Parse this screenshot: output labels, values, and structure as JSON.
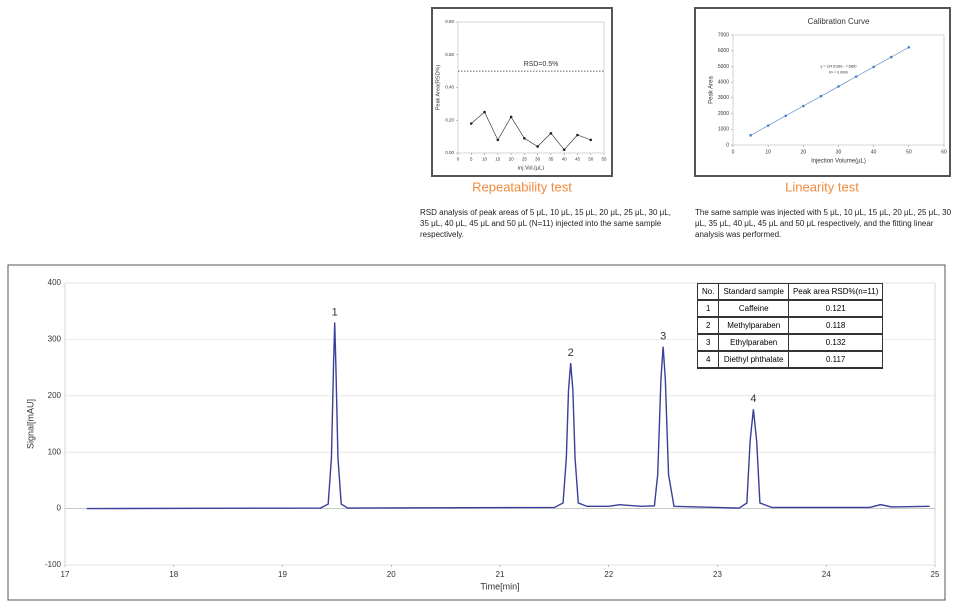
{
  "chart_data": [
    {
      "type": "line",
      "markers": true,
      "caption": "Repeatability test",
      "description": "RSD analysis of peak areas of 5 μL, 10 μL, 15 μL, 20 μL, 25 μL, 30 μL, 35 μL, 40 μL, 45 μL and 50 μL (N=11) injected into the same sample respectively.",
      "xlabel": "inj.Vol.(μL)",
      "ylabel": "Peak Area(RSD%)",
      "x": [
        5,
        10,
        15,
        20,
        25,
        30,
        35,
        40,
        45,
        50
      ],
      "series": [
        {
          "color": "#222222",
          "values": [
            0.18,
            0.25,
            0.08,
            0.22,
            0.09,
            0.04,
            0.12,
            0.02,
            0.11,
            0.08
          ]
        }
      ],
      "reference_line": {
        "value": 0.5,
        "label": "RSD=0.5%"
      },
      "xlim": [
        0,
        55
      ],
      "xticks": [
        0,
        5,
        10,
        15,
        20,
        25,
        30,
        35,
        40,
        45,
        50,
        55
      ],
      "ylim": [
        0,
        0.8
      ],
      "yticks": [
        {
          "value": 0,
          "label": "0.00"
        },
        {
          "value": 0.2,
          "label": "0.20"
        },
        {
          "value": 0.4,
          "label": "0.40"
        },
        {
          "value": 0.6,
          "label": "0.60"
        },
        {
          "value": 0.8,
          "label": "0.80"
        }
      ],
      "grid": false
    },
    {
      "type": "line",
      "markers": true,
      "title": "Calibration Curve",
      "caption": "Linearity test",
      "description": "The same sample was injected with 5 μL, 10 μL, 15 μL, 20 μL, 25 μL, 30 μL, 35 μL, 40 μL, 45 μL and 50 μL respectively, and the fitting linear analysis was  performed.",
      "xlabel": "Injection  Volume(μL)",
      "ylabel": "Peak Area",
      "annotations": [
        "y = 124.5168x - 7.6890",
        "R² = 0.9999"
      ],
      "x": [
        5,
        10,
        15,
        20,
        25,
        30,
        35,
        40,
        45,
        50
      ],
      "series": [
        {
          "color": "#4a7fc0",
          "values": [
            615,
            1237,
            1860,
            2482,
            3105,
            3727,
            4350,
            4972,
            5595,
            6217
          ]
        }
      ],
      "xlim": [
        0,
        60
      ],
      "xticks": [
        0,
        10,
        20,
        30,
        40,
        50,
        60
      ],
      "ylim": [
        0,
        7000
      ],
      "yticks": [
        0,
        1000,
        2000,
        3000,
        4000,
        5000,
        6000,
        7000
      ],
      "grid": false
    },
    {
      "type": "line",
      "markers": false,
      "xlabel": "Time[min]",
      "ylabel": "Signal[mAU]",
      "peak_labels": [
        "1",
        "2",
        "3",
        "4"
      ],
      "x": [
        17.2,
        19.35,
        19.42,
        19.45,
        19.47,
        19.48,
        19.49,
        19.51,
        19.54,
        19.6,
        21.5,
        21.58,
        21.61,
        21.63,
        21.65,
        21.67,
        21.69,
        21.72,
        21.8,
        22.0,
        22.1,
        22.3,
        22.42,
        22.45,
        22.48,
        22.5,
        22.52,
        22.55,
        22.6,
        23.2,
        23.27,
        23.3,
        23.33,
        23.36,
        23.39,
        23.5,
        24.4,
        24.5,
        24.6,
        24.95
      ],
      "series": [
        {
          "color": "#3a3f9a",
          "values": [
            0,
            1,
            8,
            90,
            260,
            330,
            260,
            90,
            8,
            1,
            2,
            10,
            90,
            210,
            258,
            210,
            90,
            10,
            4,
            4,
            7,
            4,
            5,
            60,
            230,
            287,
            230,
            60,
            4,
            1,
            10,
            120,
            176,
            120,
            10,
            2,
            2,
            7,
            3,
            4
          ]
        }
      ],
      "xlim": [
        17,
        25
      ],
      "xticks": [
        17,
        18,
        19,
        20,
        21,
        22,
        23,
        24,
        25
      ],
      "ylim": [
        -100,
        400
      ],
      "yticks": [
        -100,
        0,
        100,
        200,
        300,
        400
      ],
      "grid": true
    }
  ],
  "table": {
    "header": [
      "No.",
      "Standard sample",
      "Peak area RSD%(n=11)"
    ],
    "rows": [
      [
        1,
        "Caffeine",
        0.121
      ],
      [
        2,
        "Methylparaben",
        0.118
      ],
      [
        3,
        "Ethylparaben",
        0.132
      ],
      [
        4,
        "Diethyl phthalate",
        0.117
      ]
    ]
  }
}
